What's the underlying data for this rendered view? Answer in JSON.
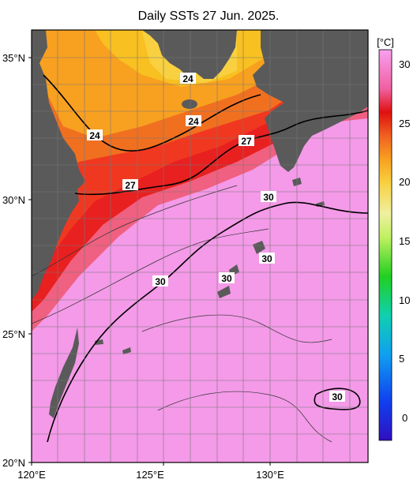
{
  "title": "Daily SSTs 27 Jun. 2025.",
  "axes": {
    "lat_ticks": [
      "35°N",
      "30°N",
      "25°N",
      "20°N"
    ],
    "lon_ticks": [
      "120°E",
      "125°E",
      "130°E"
    ]
  },
  "colorbar": {
    "unit": "[°C]",
    "ticks": [
      "30",
      "25",
      "20",
      "15",
      "10",
      "5",
      "0"
    ],
    "colors": [
      "#3010c0",
      "#1040f0",
      "#10a0f0",
      "#10d0b0",
      "#20d020",
      "#c0f060",
      "#f0f0a0",
      "#f8d040",
      "#f8a020",
      "#f06020",
      "#e01010",
      "#f060a0",
      "#f080d8",
      "#f8a0f0"
    ]
  },
  "contour_labels": [
    "24",
    "24",
    "24",
    "27",
    "27",
    "30",
    "30",
    "30",
    "30",
    "30"
  ],
  "colors": {
    "land": "#5a5a5a",
    "ocean_warm": "#f49ae8",
    "gridline": "#777777"
  }
}
